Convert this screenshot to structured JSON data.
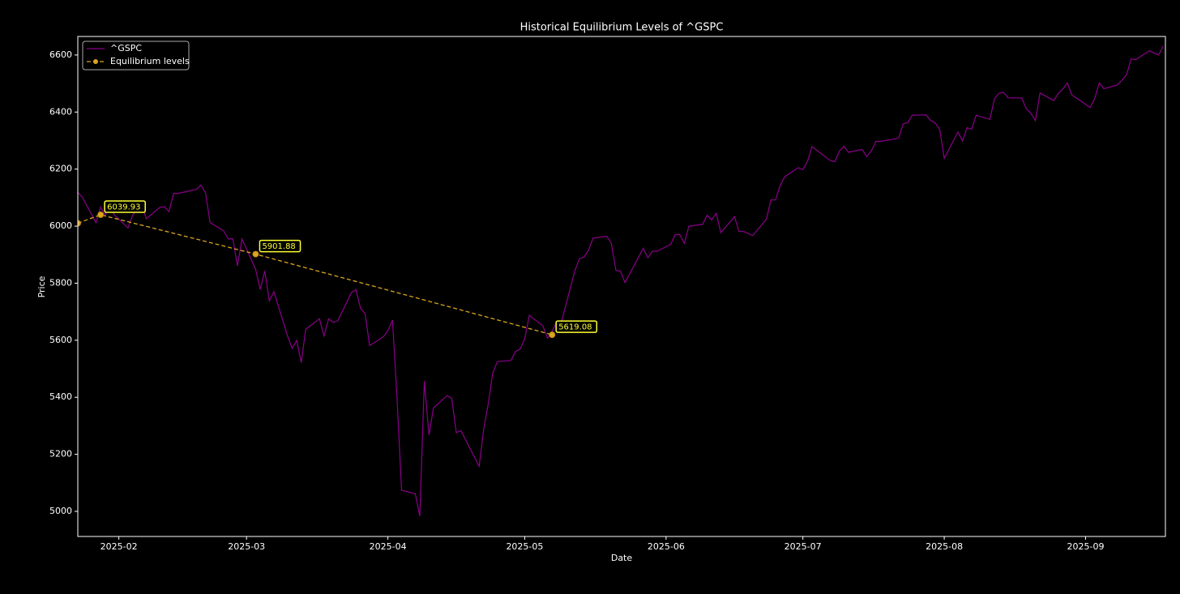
{
  "chart_data": {
    "type": "line",
    "title": "Historical Equilibrium Levels of ^GSPC",
    "xlabel": "Date",
    "ylabel": "Price",
    "xlim": [
      23,
      261.5
    ],
    "ylim": [
      4912,
      6665
    ],
    "xticks": [
      {
        "value": 32,
        "label": "2025-02"
      },
      {
        "value": 60,
        "label": "2025-03"
      },
      {
        "value": 91,
        "label": "2025-04"
      },
      {
        "value": 121,
        "label": "2025-05"
      },
      {
        "value": 152,
        "label": "2025-06"
      },
      {
        "value": 182,
        "label": "2025-07"
      },
      {
        "value": 213,
        "label": "2025-08"
      },
      {
        "value": 244,
        "label": "2025-09"
      }
    ],
    "yticks": [
      5000,
      5200,
      5400,
      5600,
      5800,
      6000,
      6200,
      6400,
      6600
    ],
    "legend": "upper left",
    "series": [
      {
        "name": "^GSPC",
        "color": "#8b008b",
        "style": "solid",
        "x": [
          23,
          24,
          27,
          28,
          29,
          30,
          31,
          34,
          35,
          36,
          37,
          38,
          41,
          42,
          43,
          44,
          45,
          49,
          50,
          51,
          52,
          55,
          56,
          57,
          58,
          59,
          62,
          63,
          64,
          65,
          66,
          69,
          70,
          71,
          72,
          73,
          76,
          77,
          78,
          79,
          80,
          83,
          84,
          85,
          86,
          87,
          90,
          91,
          92,
          93,
          94,
          97,
          98,
          99,
          100,
          101,
          104,
          105,
          106,
          107,
          111,
          112,
          113,
          114,
          115,
          118,
          119,
          120,
          121,
          122,
          125,
          126,
          127,
          128,
          129,
          132,
          133,
          134,
          135,
          136,
          139,
          140,
          141,
          142,
          143,
          147,
          148,
          149,
          150,
          153,
          154,
          155,
          156,
          157,
          160,
          161,
          162,
          163,
          164,
          167,
          168,
          169,
          171,
          174,
          175,
          176,
          177,
          178,
          181,
          182,
          183,
          184,
          188,
          189,
          190,
          191,
          192,
          195,
          196,
          197,
          198,
          199,
          202,
          203,
          204,
          205,
          206,
          209,
          210,
          211,
          212,
          213,
          216,
          217,
          218,
          219,
          220,
          223,
          224,
          225,
          226,
          227,
          230,
          231,
          232,
          233,
          234,
          237,
          238,
          239,
          240,
          241,
          245,
          246,
          247,
          248,
          251,
          252,
          253,
          254,
          255,
          258,
          259,
          260,
          261
        ],
        "values": [
          6119,
          6101,
          6012,
          6067,
          6039,
          6071,
          6040,
          5994,
          6037,
          6061,
          6083,
          6026,
          6066,
          6068,
          6051,
          6115,
          6115,
          6129,
          6144,
          6117,
          6013,
          5983,
          5955,
          5956,
          5861,
          5955,
          5849,
          5778,
          5843,
          5738,
          5770,
          5615,
          5572,
          5599,
          5522,
          5639,
          5675,
          5615,
          5675,
          5663,
          5668,
          5767,
          5777,
          5712,
          5693,
          5581,
          5612,
          5633,
          5671,
          5397,
          5074,
          5062,
          4983,
          5457,
          5268,
          5363,
          5406,
          5396,
          5276,
          5283,
          5158,
          5288,
          5376,
          5485,
          5525,
          5529,
          5561,
          5569,
          5604,
          5687,
          5650,
          5607,
          5631,
          5664,
          5660,
          5844,
          5886,
          5892,
          5916,
          5958,
          5964,
          5940,
          5845,
          5842,
          5802,
          5922,
          5889,
          5912,
          5912,
          5936,
          5970,
          5971,
          5939,
          6000,
          6006,
          6038,
          6022,
          6045,
          5977,
          6033,
          5982,
          5981,
          5967,
          6025,
          6092,
          6092,
          6141,
          6173,
          6205,
          6198,
          6227,
          6279,
          6230,
          6226,
          6263,
          6280,
          6259,
          6269,
          6244,
          6264,
          6297,
          6297,
          6305,
          6309,
          6359,
          6363,
          6389,
          6390,
          6371,
          6362,
          6339,
          6238,
          6330,
          6299,
          6345,
          6340,
          6389,
          6374,
          6446,
          6466,
          6469,
          6450,
          6449,
          6411,
          6396,
          6370,
          6467,
          6440,
          6465,
          6481,
          6502,
          6460,
          6416,
          6448,
          6502,
          6482,
          6495,
          6512,
          6532,
          6587,
          6584,
          6615,
          6607,
          6600,
          6631
        ]
      },
      {
        "name": "Equilibrium levels",
        "color": "#daa520",
        "style": "dashed",
        "marker": "circle",
        "x": [
          23,
          28,
          62,
          127
        ],
        "values": [
          6010,
          6039.93,
          5901.88,
          5619.08
        ],
        "value_labels": [
          null,
          "6039.93",
          "5901.88",
          "5619.08"
        ],
        "label_color": "#ffff33"
      }
    ]
  }
}
